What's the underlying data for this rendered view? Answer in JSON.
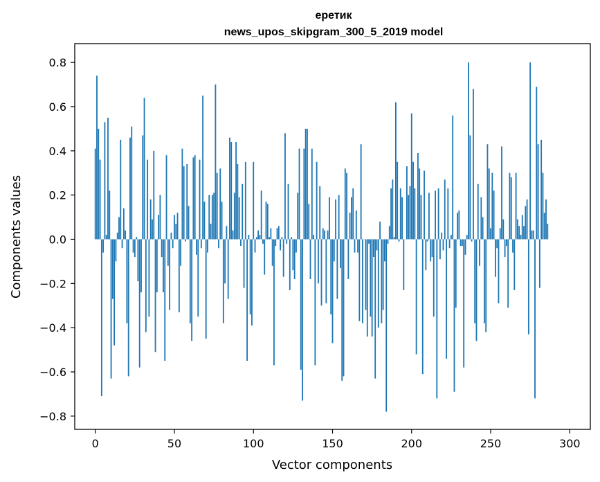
{
  "chart_data": {
    "type": "bar",
    "title": "еретик",
    "subtitle": "news_upos_skipgram_300_5_2019 model",
    "xlabel": "Vector components",
    "ylabel": "Components values",
    "xlim": [
      -13,
      313
    ],
    "ylim": [
      -0.86,
      0.885
    ],
    "xticks": [
      0,
      50,
      100,
      150,
      200,
      250,
      300
    ],
    "yticks": [
      -0.8,
      -0.6,
      -0.4,
      -0.2,
      0.0,
      0.2,
      0.4,
      0.6,
      0.8
    ],
    "ytick_labels": [
      "−0.8",
      "−0.6",
      "−0.4",
      "−0.2",
      "0.0",
      "0.2",
      "0.4",
      "0.6",
      "0.8"
    ],
    "grid": false,
    "bar_color": "#1f77b4",
    "values": [
      0.41,
      0.74,
      0.5,
      0.36,
      -0.71,
      -0.06,
      0.53,
      0.02,
      0.55,
      0.22,
      -0.63,
      -0.27,
      -0.48,
      -0.1,
      0.03,
      0.1,
      0.45,
      -0.04,
      0.14,
      0.04,
      -0.38,
      -0.62,
      0.46,
      0.51,
      -0.06,
      -0.08,
      0.01,
      -0.19,
      -0.58,
      -0.24,
      0.47,
      0.64,
      -0.42,
      0.36,
      -0.35,
      0.18,
      0.09,
      0.4,
      -0.51,
      -0.24,
      0.11,
      0.2,
      -0.08,
      -0.24,
      -0.55,
      0.38,
      -0.12,
      -0.32,
      0.03,
      -0.04,
      0.11,
      0.07,
      0.12,
      -0.33,
      -0.12,
      0.41,
      0.33,
      -0.01,
      0.34,
      0.15,
      -0.38,
      -0.46,
      0.37,
      0.38,
      -0.07,
      -0.35,
      0.36,
      -0.04,
      0.65,
      0.17,
      -0.45,
      -0.06,
      0.2,
      0.07,
      0.2,
      0.21,
      0.7,
      0.3,
      -0.04,
      0.32,
      0.17,
      -0.38,
      -0.2,
      0.06,
      -0.27,
      0.46,
      0.44,
      0.04,
      0.21,
      0.44,
      0.34,
      0.19,
      -0.03,
      0.25,
      -0.22,
      0.35,
      -0.55,
      0.02,
      -0.34,
      -0.39,
      0.35,
      -0.06,
      0.01,
      0.04,
      0.02,
      0.22,
      -0.02,
      -0.16,
      0.17,
      0.16,
      0.01,
      0.05,
      -0.12,
      -0.57,
      -0.03,
      0.05,
      0.06,
      -0.05,
      0.01,
      -0.17,
      0.48,
      -0.02,
      0.25,
      -0.23,
      0.01,
      -0.14,
      -0.18,
      -0.06,
      0.21,
      0.41,
      -0.59,
      -0.73,
      0.41,
      0.5,
      0.5,
      0.16,
      -0.18,
      0.41,
      0.02,
      -0.57,
      0.35,
      -0.2,
      0.24,
      -0.3,
      0.05,
      0.04,
      -0.29,
      0.04,
      0.19,
      -0.34,
      -0.47,
      -0.1,
      0.18,
      -0.27,
      0.2,
      -0.13,
      -0.64,
      -0.62,
      0.32,
      0.3,
      -0.18,
      0.12,
      0.19,
      0.23,
      -0.06,
      0.13,
      -0.06,
      -0.37,
      0.43,
      -0.38,
      0.0,
      -0.32,
      -0.44,
      -0.02,
      -0.35,
      -0.44,
      -0.08,
      -0.63,
      -0.05,
      -0.4,
      0.08,
      -0.38,
      -0.32,
      -0.1,
      -0.78,
      -0.02,
      0.06,
      0.23,
      0.27,
      0.01,
      0.62,
      0.35,
      -0.01,
      0.23,
      0.19,
      -0.23,
      -0.0,
      0.33,
      0.2,
      0.24,
      0.57,
      0.35,
      0.23,
      -0.52,
      0.39,
      0.32,
      0.2,
      -0.61,
      0.31,
      -0.14,
      -0.01,
      0.21,
      -0.1,
      -0.08,
      -0.35,
      0.22,
      -0.72,
      0.23,
      -0.09,
      0.03,
      -0.05,
      0.27,
      -0.54,
      0.23,
      -0.04,
      0.02,
      0.56,
      -0.69,
      -0.31,
      0.12,
      0.13,
      -0.03,
      -0.03,
      -0.58,
      -0.07,
      0.02,
      0.8,
      0.47,
      -0.01,
      0.68,
      -0.38,
      -0.46,
      0.25,
      -0.12,
      0.19,
      0.1,
      -0.38,
      -0.42,
      0.43,
      0.32,
      0.05,
      0.3,
      0.22,
      -0.17,
      -0.04,
      -0.29,
      0.05,
      0.42,
      0.09,
      -0.08,
      -0.03,
      -0.31,
      0.3,
      0.28,
      -0.06,
      -0.23,
      0.3,
      0.09,
      0.06,
      0.02,
      0.11,
      0.06,
      0.15,
      0.18,
      -0.43,
      0.8,
      0.04,
      0.04,
      -0.72,
      0.69,
      0.43,
      -0.22,
      0.45,
      0.3,
      0.12,
      0.18,
      0.07
    ]
  }
}
